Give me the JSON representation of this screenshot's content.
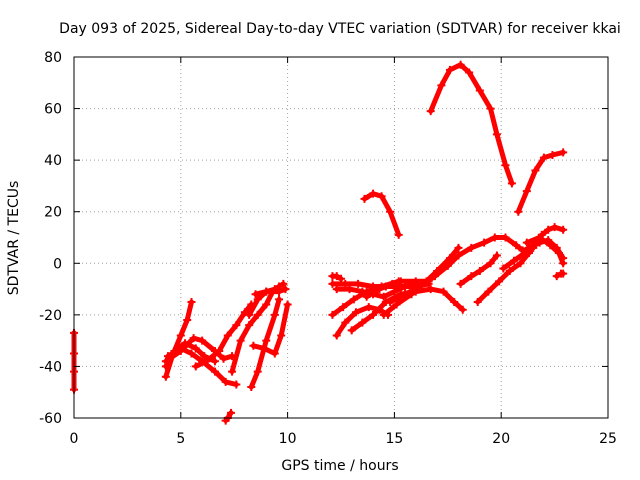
{
  "chart_data": {
    "type": "scatter",
    "title": "Day 093 of 2025, Sidereal Day-to-day VTEC variation (SDTVAR) for receiver kkai",
    "xlabel": "GPS time / hours",
    "ylabel": "SDTVAR / TECUs",
    "xlim": [
      0,
      25
    ],
    "ylim": [
      -60,
      80
    ],
    "xticks": [
      "0",
      "5",
      "10",
      "15",
      "20",
      "25"
    ],
    "yticks": [
      "-60",
      "-40",
      "-20",
      "0",
      "20",
      "40",
      "60",
      "80"
    ],
    "grid": true,
    "legend": "none",
    "marker": "plus",
    "color": "#ff0000",
    "series": [
      {
        "points": [
          [
            0.0,
            -27
          ],
          [
            0.0,
            -35
          ],
          [
            0.0,
            -42
          ],
          [
            0.0,
            -49
          ]
        ]
      },
      {
        "points": [
          [
            4.3,
            -44
          ],
          [
            4.6,
            -36
          ],
          [
            5.0,
            -28
          ],
          [
            5.3,
            -22
          ],
          [
            5.5,
            -15
          ]
        ]
      },
      {
        "points": [
          [
            4.3,
            -40
          ],
          [
            4.7,
            -34
          ],
          [
            5.2,
            -31
          ],
          [
            5.7,
            -33
          ],
          [
            6.1,
            -36
          ],
          [
            6.6,
            -38
          ]
        ]
      },
      {
        "points": [
          [
            4.3,
            -38
          ],
          [
            5.0,
            -34
          ],
          [
            5.6,
            -29
          ],
          [
            6.0,
            -30
          ],
          [
            6.6,
            -34
          ],
          [
            7.0,
            -37
          ],
          [
            7.4,
            -36
          ]
        ]
      },
      {
        "points": [
          [
            4.4,
            -36
          ],
          [
            5.0,
            -33
          ],
          [
            5.5,
            -35
          ],
          [
            6.0,
            -38
          ],
          [
            6.6,
            -42
          ],
          [
            7.1,
            -46
          ],
          [
            7.6,
            -47
          ]
        ]
      },
      {
        "points": [
          [
            5.7,
            -40
          ],
          [
            6.2,
            -38
          ],
          [
            6.8,
            -34
          ],
          [
            7.2,
            -28
          ],
          [
            7.6,
            -24
          ],
          [
            8.0,
            -19
          ],
          [
            8.3,
            -16
          ]
        ]
      },
      {
        "points": [
          [
            7.1,
            -61
          ],
          [
            7.2,
            -60
          ],
          [
            7.35,
            -58
          ]
        ]
      },
      {
        "points": [
          [
            7.4,
            -42
          ],
          [
            7.8,
            -30
          ],
          [
            8.2,
            -24
          ],
          [
            8.6,
            -20
          ],
          [
            9.0,
            -16
          ],
          [
            9.3,
            -11
          ],
          [
            9.6,
            -9
          ]
        ]
      },
      {
        "points": [
          [
            8.4,
            -32
          ],
          [
            8.9,
            -33
          ],
          [
            9.4,
            -35
          ],
          [
            9.7,
            -28
          ],
          [
            10.0,
            -16
          ]
        ]
      },
      {
        "points": [
          [
            8.3,
            -48
          ],
          [
            8.6,
            -42
          ],
          [
            9.0,
            -30
          ],
          [
            9.4,
            -20
          ],
          [
            9.6,
            -14
          ]
        ]
      },
      {
        "points": [
          [
            8.2,
            -20
          ],
          [
            8.6,
            -14
          ],
          [
            9.0,
            -11
          ],
          [
            9.4,
            -10
          ],
          [
            9.8,
            -8
          ]
        ]
      },
      {
        "points": [
          [
            8.5,
            -12
          ],
          [
            9.0,
            -11
          ],
          [
            9.6,
            -11
          ],
          [
            9.9,
            -10
          ]
        ]
      },
      {
        "points": [
          [
            12.1,
            -5
          ],
          [
            12.3,
            -5
          ],
          [
            12.5,
            -6
          ]
        ]
      },
      {
        "points": [
          [
            12.1,
            -20
          ],
          [
            12.6,
            -17
          ],
          [
            13.1,
            -14
          ],
          [
            13.7,
            -11
          ],
          [
            14.4,
            -9
          ],
          [
            15.2,
            -7
          ],
          [
            16.0,
            -7
          ],
          [
            16.6,
            -7
          ]
        ]
      },
      {
        "points": [
          [
            12.3,
            -10
          ],
          [
            12.9,
            -10
          ],
          [
            13.5,
            -11
          ],
          [
            14.0,
            -12
          ],
          [
            14.5,
            -13
          ],
          [
            15.0,
            -11
          ],
          [
            15.5,
            -9
          ],
          [
            16.1,
            -8
          ]
        ]
      },
      {
        "points": [
          [
            12.3,
            -28
          ],
          [
            12.7,
            -23
          ],
          [
            13.2,
            -19
          ],
          [
            13.8,
            -17
          ],
          [
            14.3,
            -18
          ],
          [
            14.7,
            -20
          ]
        ]
      },
      {
        "points": [
          [
            12.1,
            -8
          ],
          [
            12.7,
            -8
          ],
          [
            13.3,
            -8
          ],
          [
            14.0,
            -9
          ],
          [
            14.6,
            -9
          ],
          [
            15.3,
            -9
          ],
          [
            16.0,
            -9
          ],
          [
            16.6,
            -8
          ]
        ]
      },
      {
        "points": [
          [
            13.0,
            -26
          ],
          [
            13.5,
            -23
          ],
          [
            14.0,
            -20
          ],
          [
            14.6,
            -15
          ],
          [
            15.3,
            -12
          ],
          [
            16.0,
            -11
          ],
          [
            16.7,
            -10
          ],
          [
            17.3,
            -11
          ],
          [
            17.8,
            -15
          ],
          [
            18.2,
            -18
          ]
        ]
      },
      {
        "points": [
          [
            13.7,
            -13
          ],
          [
            14.3,
            -10
          ],
          [
            14.9,
            -8
          ],
          [
            15.3,
            -7
          ]
        ]
      },
      {
        "points": [
          [
            14.5,
            -20
          ],
          [
            15.1,
            -16
          ],
          [
            15.8,
            -12
          ],
          [
            16.5,
            -7
          ],
          [
            17.0,
            -3
          ],
          [
            17.6,
            2
          ],
          [
            18.0,
            6
          ]
        ]
      },
      {
        "points": [
          [
            14.8,
            -15
          ],
          [
            15.5,
            -12
          ],
          [
            16.2,
            -9
          ],
          [
            16.9,
            -5
          ],
          [
            17.5,
            -1
          ],
          [
            18.0,
            3
          ],
          [
            18.6,
            6
          ],
          [
            19.2,
            8
          ],
          [
            19.7,
            10
          ],
          [
            20.2,
            10
          ],
          [
            20.7,
            7
          ],
          [
            21.0,
            5
          ],
          [
            21.5,
            6
          ]
        ]
      },
      {
        "points": [
          [
            18.1,
            -8
          ],
          [
            18.6,
            -5
          ],
          [
            19.0,
            -3
          ],
          [
            19.5,
            0
          ],
          [
            19.8,
            3
          ]
        ]
      },
      {
        "points": [
          [
            18.9,
            -15
          ],
          [
            19.4,
            -11
          ],
          [
            19.9,
            -7
          ],
          [
            20.4,
            -3
          ],
          [
            20.9,
            0
          ],
          [
            21.3,
            4
          ],
          [
            21.6,
            8
          ]
        ]
      },
      {
        "points": [
          [
            20.1,
            -2
          ],
          [
            20.6,
            1
          ],
          [
            21.1,
            4
          ],
          [
            21.6,
            8
          ],
          [
            21.9,
            11
          ],
          [
            22.2,
            13
          ],
          [
            22.5,
            14
          ],
          [
            22.9,
            13
          ]
        ]
      },
      {
        "points": [
          [
            21.3,
            6
          ],
          [
            21.8,
            8
          ],
          [
            22.2,
            9
          ],
          [
            22.6,
            6
          ],
          [
            22.9,
            2
          ]
        ]
      },
      {
        "points": [
          [
            21.2,
            8
          ],
          [
            21.8,
            10
          ],
          [
            22.3,
            7
          ],
          [
            22.7,
            4
          ],
          [
            22.9,
            0
          ]
        ]
      },
      {
        "points": [
          [
            22.6,
            -5
          ],
          [
            22.8,
            -4
          ],
          [
            22.9,
            -4
          ]
        ]
      },
      {
        "points": [
          [
            16.7,
            59
          ],
          [
            17.2,
            69
          ],
          [
            17.6,
            75
          ],
          [
            18.1,
            77
          ],
          [
            18.5,
            74
          ],
          [
            19.0,
            67
          ],
          [
            19.5,
            60
          ],
          [
            19.8,
            50
          ],
          [
            20.2,
            38
          ],
          [
            20.5,
            31
          ]
        ]
      },
      {
        "points": [
          [
            20.8,
            20
          ],
          [
            21.2,
            28
          ],
          [
            21.6,
            36
          ],
          [
            22.0,
            41
          ],
          [
            22.4,
            42
          ],
          [
            22.9,
            43
          ]
        ]
      },
      {
        "points": [
          [
            13.6,
            25
          ],
          [
            14.0,
            27
          ],
          [
            14.4,
            26
          ],
          [
            14.8,
            20
          ],
          [
            15.2,
            11
          ]
        ]
      }
    ]
  }
}
